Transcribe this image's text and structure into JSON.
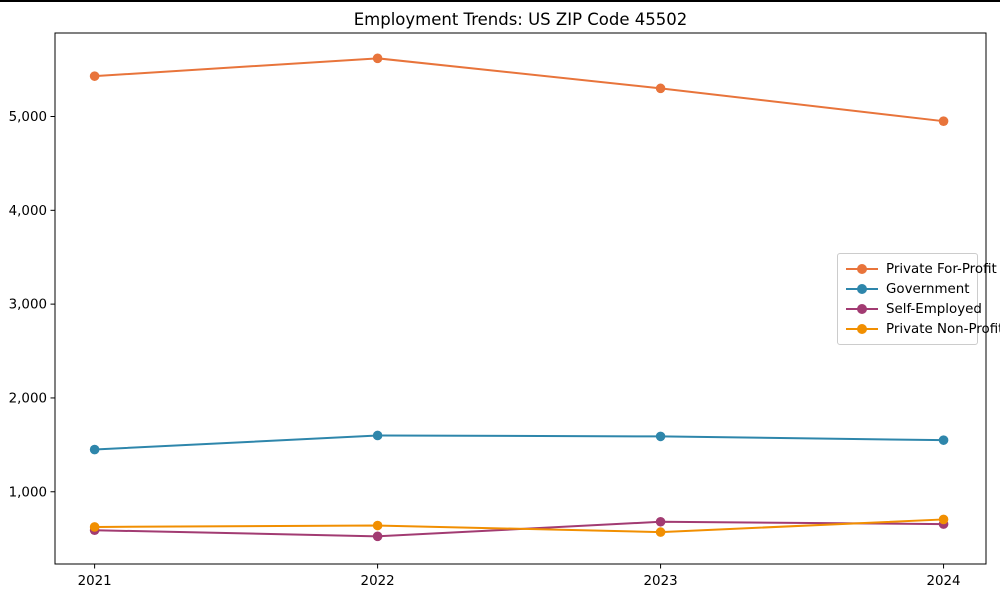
{
  "chart_data": {
    "type": "line",
    "title": "Employment Trends: US ZIP Code 45502",
    "xlabel": "",
    "ylabel": "",
    "x": [
      2021,
      2022,
      2023,
      2024
    ],
    "x_tick_labels": [
      "2021",
      "2022",
      "2023",
      "2024"
    ],
    "y_ticks": [
      1000,
      2000,
      3000,
      4000,
      5000
    ],
    "y_tick_labels": [
      "1,000",
      "2,000",
      "3,000",
      "4,000",
      "5,000"
    ],
    "xlim": [
      2020.86,
      2024.15
    ],
    "ylim": [
      230,
      5890
    ],
    "grid": false,
    "marker": "circle",
    "legend_position": "center-right",
    "series": [
      {
        "name": "Private For-Profit",
        "color": "#E8743B",
        "values": [
          5430,
          5620,
          5300,
          4950
        ]
      },
      {
        "name": "Government",
        "color": "#2E86AB",
        "values": [
          1450,
          1600,
          1590,
          1550
        ]
      },
      {
        "name": "Self-Employed",
        "color": "#A23B72",
        "values": [
          590,
          525,
          680,
          655
        ]
      },
      {
        "name": "Private Non-Profit",
        "color": "#F18F01",
        "values": [
          625,
          640,
          570,
          705
        ]
      }
    ]
  },
  "colors": {
    "spine": "#000000",
    "legend_border": "#cccccc",
    "background": "#ffffff"
  }
}
